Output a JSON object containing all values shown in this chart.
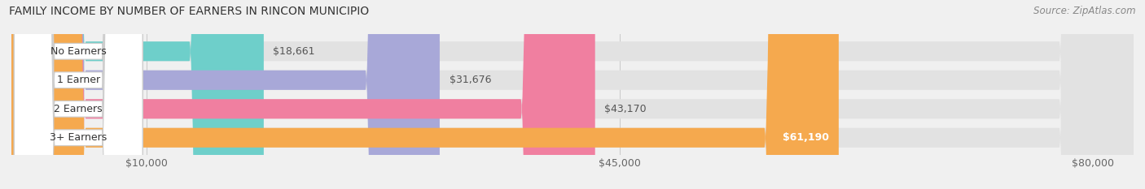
{
  "title": "FAMILY INCOME BY NUMBER OF EARNERS IN RINCON MUNICIPIO",
  "source": "Source: ZipAtlas.com",
  "categories": [
    "No Earners",
    "1 Earner",
    "2 Earners",
    "3+ Earners"
  ],
  "values": [
    18661,
    31676,
    43170,
    61190
  ],
  "bar_colors": [
    "#6ecfca",
    "#a8a8d8",
    "#f07fa0",
    "#f5a94e"
  ],
  "value_label_white": [
    false,
    false,
    false,
    true
  ],
  "value_labels": [
    "$18,661",
    "$31,676",
    "$43,170",
    "$61,190"
  ],
  "x_ticks": [
    10000,
    45000,
    80000
  ],
  "x_tick_labels": [
    "$10,000",
    "$45,000",
    "$80,000"
  ],
  "xlim_max": 83000,
  "background_color": "#f0f0f0",
  "bar_background_color": "#e2e2e2",
  "title_fontsize": 10,
  "source_fontsize": 8.5,
  "label_fontsize": 9,
  "value_fontsize": 9,
  "tick_fontsize": 9
}
